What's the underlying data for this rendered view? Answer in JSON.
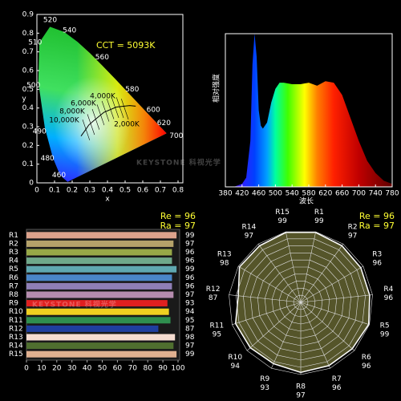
{
  "chart_data": [
    {
      "type": "chromaticity",
      "xlabel": "x",
      "ylabel": "y",
      "xlim": [
        0,
        0.8
      ],
      "ylim": [
        0,
        0.9
      ],
      "xticks": [
        0,
        0.1,
        0.2,
        0.3,
        0.4,
        0.5,
        0.6,
        0.7,
        0.8
      ],
      "yticks": [
        0,
        0.1,
        0.2,
        0.3,
        0.4,
        0.5,
        0.6,
        0.7,
        0.8,
        0.9
      ],
      "wavelength_labels": [
        460,
        480,
        490,
        500,
        510,
        520,
        540,
        560,
        580,
        600,
        620,
        700
      ],
      "cct_label": "CCT = 5093K",
      "isotherm_labels": [
        "10,000K",
        "8,000K",
        "6,000K",
        "4,000K",
        "2,000K"
      ]
    },
    {
      "type": "area",
      "xlabel": "波长",
      "ylabel": "相对强度",
      "x": [
        380,
        400,
        420,
        430,
        440,
        445,
        450,
        455,
        460,
        465,
        470,
        480,
        490,
        500,
        510,
        520,
        540,
        560,
        580,
        600,
        620,
        640,
        660,
        680,
        700,
        720,
        740,
        760,
        780
      ],
      "values": [
        0,
        0,
        0.02,
        0.06,
        0.3,
        0.8,
        1.0,
        0.85,
        0.5,
        0.4,
        0.38,
        0.42,
        0.55,
        0.64,
        0.68,
        0.68,
        0.67,
        0.67,
        0.68,
        0.66,
        0.69,
        0.68,
        0.6,
        0.45,
        0.3,
        0.17,
        0.09,
        0.04,
        0.02
      ],
      "xlim": [
        380,
        780
      ],
      "ylim": [
        0,
        1
      ],
      "xticks": [
        380,
        420,
        460,
        500,
        540,
        580,
        620,
        660,
        700,
        740,
        780
      ]
    },
    {
      "type": "barh",
      "categories": [
        "R1",
        "R2",
        "R3",
        "R4",
        "R5",
        "R6",
        "R7",
        "R8",
        "R9",
        "R10",
        "R11",
        "R12",
        "R13",
        "R14",
        "R15"
      ],
      "values": [
        99,
        97,
        96,
        96,
        99,
        96,
        96,
        97,
        93,
        94,
        95,
        87,
        98,
        97,
        99
      ],
      "colors": [
        "#dca28c",
        "#b5a26a",
        "#97a847",
        "#6fa88a",
        "#5fa8b0",
        "#4a86c8",
        "#8f7fb6",
        "#b58cae",
        "#e02020",
        "#f0d020",
        "#2f8f4f",
        "#1f3f9f",
        "#f5dcd0",
        "#4f6f2f",
        "#e0b090"
      ],
      "xlim": [
        0,
        100
      ],
      "xticks": [
        0,
        10,
        20,
        30,
        40,
        50,
        60,
        70,
        80,
        90,
        100
      ],
      "annotations": [
        "Re = 96",
        "Ra = 97"
      ]
    },
    {
      "type": "radar",
      "categories": [
        "R1",
        "R2",
        "R3",
        "R4",
        "R5",
        "R6",
        "R7",
        "R8",
        "R9",
        "R10",
        "R11",
        "R12",
        "R13",
        "R14",
        "R15"
      ],
      "values": [
        99,
        97,
        96,
        96,
        99,
        96,
        96,
        97,
        93,
        94,
        95,
        87,
        98,
        97,
        99
      ],
      "color": "#55552a",
      "rlim": [
        0,
        100
      ],
      "rticks": [
        10,
        20,
        30,
        40,
        50,
        60,
        70,
        80,
        90,
        100
      ],
      "annotations": [
        "Re = 96",
        "Ra = 97"
      ]
    }
  ],
  "watermark": "KEYSTONE 科视光学"
}
